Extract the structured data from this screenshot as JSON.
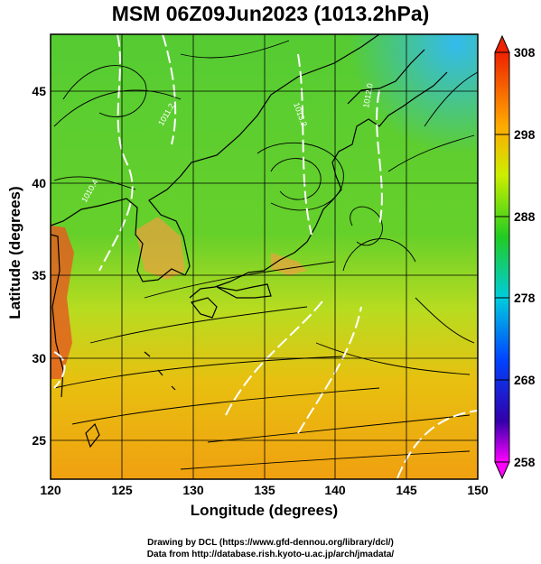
{
  "title": "MSM 06Z09Jun2023 (1013.2hPa)",
  "xaxis": {
    "label": "Longitude (degrees)",
    "ticks": [
      "120",
      "125",
      "130",
      "135",
      "140",
      "145",
      "150"
    ]
  },
  "yaxis": {
    "label": "Latitude  (degrees)",
    "ticks": [
      "25",
      "30",
      "35",
      "40",
      "45"
    ]
  },
  "colorbar": {
    "ticks": [
      "308",
      "298",
      "288",
      "278",
      "268",
      "258"
    ],
    "min": 258,
    "max": 308
  },
  "contour_labels": [
    "1011.2",
    "1013.2",
    "1012.0",
    "1010.4"
  ],
  "credits": {
    "line1": "Drawing by DCL (https://www.gfd-dennou.org/library/dcl/)",
    "line2": "Data from http://database.rish.kyoto-u.ac.jp/arch/jmadata/"
  }
}
